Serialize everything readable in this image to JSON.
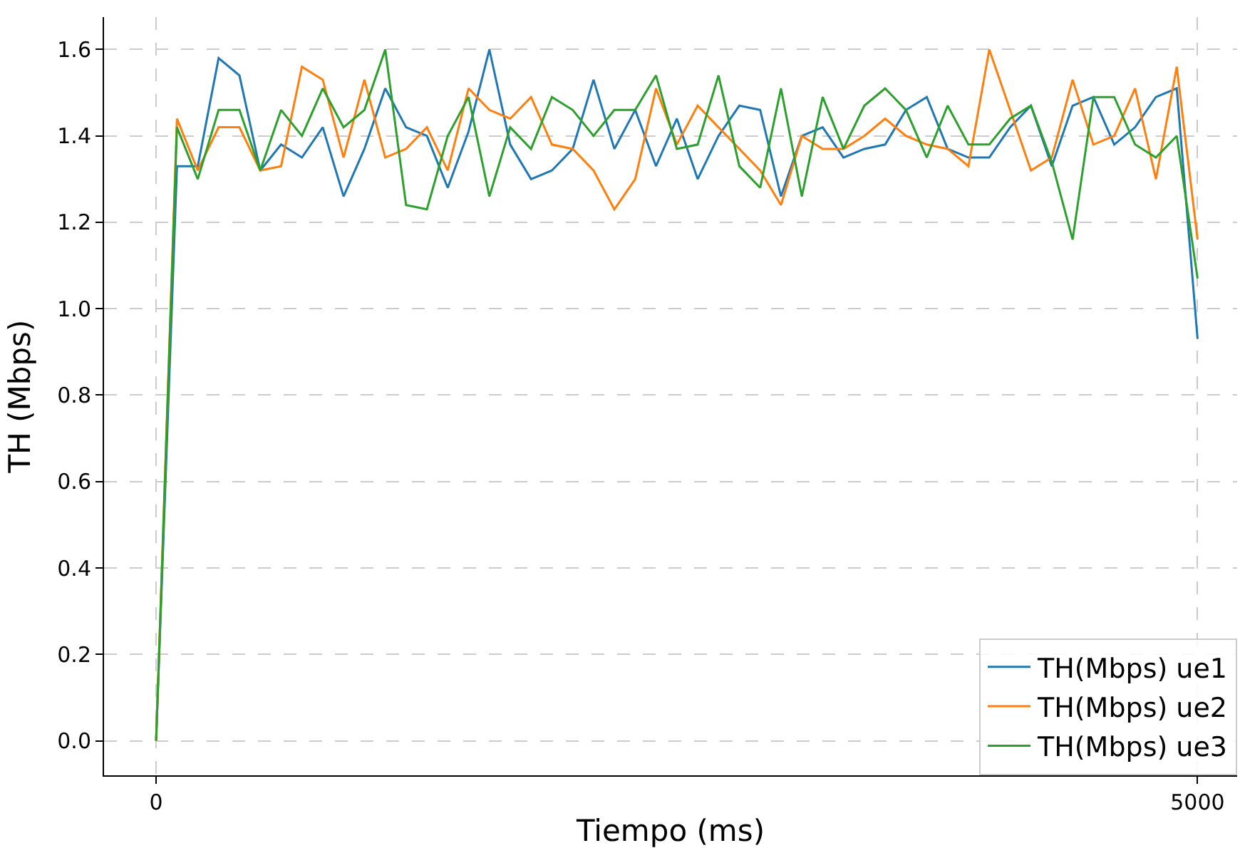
{
  "chart_data": {
    "type": "line",
    "xlabel": "Tiempo (ms)",
    "ylabel": "TH (Mbps)",
    "x": [
      0,
      100,
      200,
      300,
      400,
      500,
      600,
      700,
      800,
      900,
      1000,
      1100,
      1200,
      1300,
      1400,
      1500,
      1600,
      1700,
      1800,
      1900,
      2000,
      2100,
      2200,
      2300,
      2400,
      2500,
      2600,
      2700,
      2800,
      2900,
      3000,
      3100,
      3200,
      3300,
      3400,
      3500,
      3600,
      3700,
      3800,
      3900,
      4000,
      4100,
      4200,
      4300,
      4400,
      4500,
      4600,
      4700,
      4800,
      4900,
      5000
    ],
    "series": [
      {
        "name": "TH(Mbps) ue1",
        "color": "#1f77b4",
        "values": [
          0,
          1.33,
          1.33,
          1.58,
          1.54,
          1.32,
          1.38,
          1.35,
          1.42,
          1.26,
          1.37,
          1.51,
          1.42,
          1.4,
          1.28,
          1.41,
          1.6,
          1.38,
          1.3,
          1.32,
          1.37,
          1.53,
          1.37,
          1.46,
          1.33,
          1.44,
          1.3,
          1.4,
          1.47,
          1.46,
          1.26,
          1.4,
          1.42,
          1.35,
          1.37,
          1.38,
          1.46,
          1.49,
          1.37,
          1.35,
          1.35,
          1.42,
          1.47,
          1.33,
          1.47,
          1.49,
          1.38,
          1.42,
          1.49,
          1.51,
          0.93
        ]
      },
      {
        "name": "TH(Mbps) ue2",
        "color": "#ff7f0e",
        "values": [
          0,
          1.44,
          1.32,
          1.42,
          1.42,
          1.32,
          1.33,
          1.56,
          1.53,
          1.35,
          1.53,
          1.35,
          1.37,
          1.42,
          1.32,
          1.51,
          1.46,
          1.44,
          1.49,
          1.38,
          1.37,
          1.32,
          1.23,
          1.3,
          1.51,
          1.38,
          1.47,
          1.42,
          1.37,
          1.32,
          1.24,
          1.4,
          1.37,
          1.37,
          1.4,
          1.44,
          1.4,
          1.38,
          1.37,
          1.33,
          1.6,
          1.46,
          1.32,
          1.35,
          1.53,
          1.38,
          1.4,
          1.51,
          1.3,
          1.56,
          1.16
        ]
      },
      {
        "name": "TH(Mbps) ue3",
        "color": "#2ca02c",
        "values": [
          0,
          1.42,
          1.3,
          1.46,
          1.46,
          1.32,
          1.46,
          1.4,
          1.51,
          1.42,
          1.46,
          1.6,
          1.24,
          1.23,
          1.4,
          1.49,
          1.26,
          1.42,
          1.37,
          1.49,
          1.46,
          1.4,
          1.46,
          1.46,
          1.54,
          1.37,
          1.38,
          1.54,
          1.33,
          1.28,
          1.51,
          1.26,
          1.49,
          1.37,
          1.47,
          1.51,
          1.46,
          1.35,
          1.47,
          1.38,
          1.38,
          1.44,
          1.47,
          1.34,
          1.16,
          1.49,
          1.49,
          1.38,
          1.35,
          1.4,
          1.07
        ]
      }
    ],
    "xlim": [
      -250,
      5190
    ],
    "xticks": [
      0,
      5000
    ],
    "ylim": [
      -0.08,
      1.675
    ],
    "yticks": [
      {
        "value": 0,
        "label": "0.0"
      },
      0.2,
      0.4,
      0.6,
      0.8,
      {
        "value": 1,
        "label": "1.0"
      },
      1.2,
      1.4,
      1.6
    ],
    "grid": true,
    "legend": "bottom right",
    "marker": "none",
    "line_style": "solid"
  }
}
